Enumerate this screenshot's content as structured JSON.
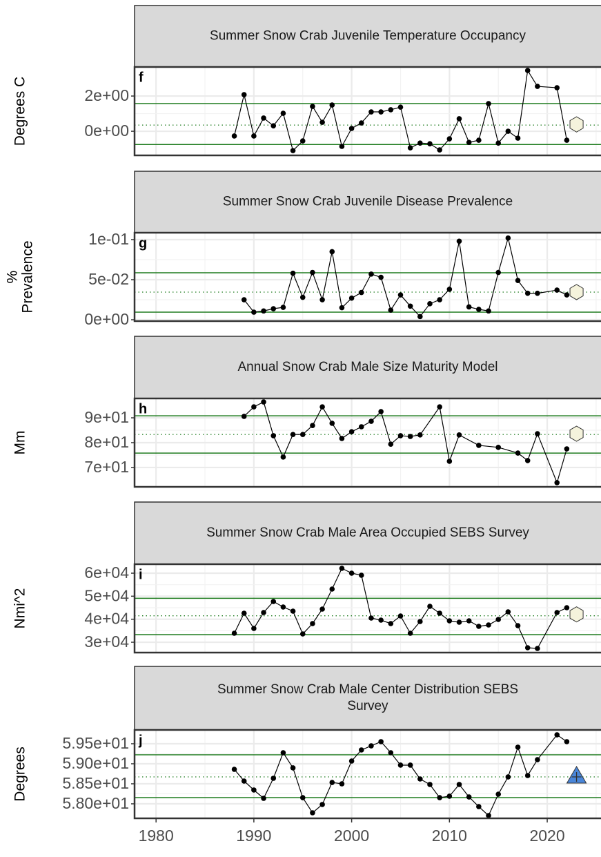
{
  "chart_data": [
    {
      "type": "line",
      "title": "Summer Snow Crab Juvenile Temperature Occupancy",
      "panel_label": "f",
      "ylabel": [
        "Degrees C"
      ],
      "x": [
        1988,
        1989,
        1990,
        1991,
        1992,
        1993,
        1994,
        1995,
        1996,
        1997,
        1998,
        1999,
        2000,
        2001,
        2002,
        2003,
        2004,
        2005,
        2006,
        2007,
        2008,
        2009,
        2010,
        2011,
        2012,
        2013,
        2014,
        2015,
        2016,
        2017,
        2018,
        2019,
        2021,
        2022
      ],
      "values": [
        -0.27,
        2.08,
        -0.27,
        0.75,
        0.31,
        1.02,
        -1.1,
        -0.55,
        1.41,
        0.51,
        1.49,
        -0.86,
        0.16,
        0.47,
        1.1,
        1.1,
        1.22,
        1.37,
        -0.94,
        -0.67,
        -0.71,
        -1.06,
        -0.43,
        0.71,
        -0.63,
        -0.51,
        1.57,
        -0.67,
        0,
        -0.39,
        3.45,
        2.55,
        2.47,
        -0.51
      ],
      "color": "#000000",
      "xlim": [
        1977.8,
        2025.5
      ],
      "ylim": [
        -1.37,
        3.65
      ],
      "yticks": [
        {
          "value": 0,
          "label": "0e+00"
        },
        {
          "value": 2,
          "label": "2e+00"
        }
      ],
      "ref_lines": [
        {
          "value": 1.57,
          "style": "solid"
        },
        {
          "value": -0.75,
          "style": "solid"
        },
        {
          "value": 0.35,
          "style": "dotted"
        }
      ],
      "ref_color": "#1e7b1e",
      "current": {
        "x": 2023,
        "value": 0.39,
        "shape": "hexagon",
        "color": "#f5f3dc"
      },
      "grid": true
    },
    {
      "type": "line",
      "title": "Summer Snow Crab Juvenile Disease Prevalence",
      "panel_label": "g",
      "ylabel": [
        "%",
        "Prevalence"
      ],
      "x": [
        1989,
        1990,
        1991,
        1992,
        1993,
        1994,
        1995,
        1996,
        1997,
        1998,
        1999,
        2000,
        2001,
        2002,
        2003,
        2004,
        2005,
        2006,
        2007,
        2008,
        2009,
        2010,
        2011,
        2012,
        2013,
        2014,
        2015,
        2016,
        2017,
        2018,
        2019,
        2021,
        2022
      ],
      "values": [
        0.025,
        0.0095,
        0.011,
        0.0138,
        0.0155,
        0.058,
        0.028,
        0.059,
        0.025,
        0.085,
        0.015,
        0.027,
        0.034,
        0.057,
        0.053,
        0.012,
        0.031,
        0.017,
        0.004,
        0.02,
        0.025,
        0.038,
        0.098,
        0.016,
        0.013,
        0.011,
        0.059,
        0.102,
        0.049,
        0.033,
        0.033,
        0.037,
        0.031
      ],
      "color": "#000000",
      "xlim": [
        1977.8,
        2025.5
      ],
      "ylim": [
        -0.0017,
        0.1086
      ],
      "yticks": [
        {
          "value": 0,
          "label": "0e+00"
        },
        {
          "value": 0.05,
          "label": "5e-02"
        },
        {
          "value": 0.1,
          "label": "1e-01"
        }
      ],
      "ref_lines": [
        {
          "value": 0.0586,
          "style": "solid"
        },
        {
          "value": 0.0095,
          "style": "solid"
        },
        {
          "value": 0.0345,
          "style": "dotted"
        }
      ],
      "ref_color": "#1e7b1e",
      "current": {
        "x": 2023,
        "value": 0.0345,
        "shape": "hexagon",
        "color": "#f5f3dc"
      },
      "grid": true
    },
    {
      "type": "line",
      "title": "Annual Snow Crab Male Size Maturity Model",
      "panel_label": "h",
      "ylabel": [
        "Mm"
      ],
      "x": [
        1989,
        1990,
        1991,
        1992,
        1993,
        1994,
        1995,
        1996,
        1997,
        1998,
        1999,
        2000,
        2001,
        2002,
        2003,
        2004,
        2005,
        2006,
        2007,
        2009,
        2010,
        2011,
        2013,
        2015,
        2017,
        2018,
        2019,
        2021,
        2022
      ],
      "values": [
        90.6,
        94.4,
        96.4,
        82.8,
        74.2,
        83.3,
        83.3,
        86.9,
        94.4,
        87.8,
        81.7,
        84.4,
        86.4,
        88.6,
        92.5,
        79.4,
        82.8,
        82.5,
        83.1,
        94.4,
        72.5,
        83.1,
        78.9,
        78.1,
        75.8,
        72.8,
        83.6,
        63.9,
        77.5
      ],
      "color": "#000000",
      "xlim": [
        1977.8,
        2025.5
      ],
      "ylim": [
        62.2,
        97.8
      ],
      "yticks": [
        {
          "value": 70,
          "label": "7e+01"
        },
        {
          "value": 80,
          "label": "8e+01"
        },
        {
          "value": 90,
          "label": "9e+01"
        }
      ],
      "ref_lines": [
        {
          "value": 90.8,
          "style": "solid"
        },
        {
          "value": 75.8,
          "style": "solid"
        },
        {
          "value": 83.3,
          "style": "dotted"
        }
      ],
      "ref_color": "#1e7b1e",
      "current": {
        "x": 2023,
        "value": 83.6,
        "shape": "hexagon",
        "color": "#f5f3dc"
      },
      "grid": true
    },
    {
      "type": "line",
      "title": "Summer Snow Crab Male Area Occupied SEBS Survey",
      "panel_label": "i",
      "ylabel": [
        "Nmi^2"
      ],
      "x": [
        1988,
        1989,
        1990,
        1991,
        1992,
        1993,
        1994,
        1995,
        1996,
        1997,
        1998,
        1999,
        2000,
        2001,
        2002,
        2003,
        2004,
        2005,
        2006,
        2007,
        2008,
        2009,
        2010,
        2011,
        2012,
        2013,
        2014,
        2015,
        2016,
        2017,
        2018,
        2019,
        2021,
        2022
      ],
      "values": [
        33900,
        42600,
        36000,
        42900,
        47700,
        45300,
        43500,
        33600,
        38100,
        44400,
        53100,
        62100,
        60000,
        59100,
        40500,
        39600,
        38100,
        41400,
        33900,
        39000,
        45600,
        42600,
        39300,
        38700,
        39300,
        36900,
        37500,
        39900,
        43200,
        37200,
        27600,
        27300,
        42900,
        45000
      ],
      "color": "#000000",
      "xlim": [
        1977.8,
        2025.5
      ],
      "ylim": [
        25500,
        63900
      ],
      "yticks": [
        {
          "value": 30000,
          "label": "3e+04"
        },
        {
          "value": 40000,
          "label": "4e+04"
        },
        {
          "value": 50000,
          "label": "5e+04"
        },
        {
          "value": 60000,
          "label": "6e+04"
        }
      ],
      "ref_lines": [
        {
          "value": 49100,
          "style": "solid"
        },
        {
          "value": 33300,
          "style": "solid"
        },
        {
          "value": 41500,
          "style": "dotted"
        }
      ],
      "ref_color": "#1e7b1e",
      "current": {
        "x": 2023,
        "value": 42100,
        "shape": "hexagon",
        "color": "#f5f3dc"
      },
      "grid": true
    },
    {
      "type": "line",
      "title": [
        "Summer Snow Crab Male Center Distribution SEBS",
        "Survey"
      ],
      "panel_label": "j",
      "ylabel": [
        "Degrees"
      ],
      "x": [
        1988,
        1989,
        1990,
        1991,
        1992,
        1993,
        1994,
        1995,
        1996,
        1997,
        1998,
        1999,
        2000,
        2001,
        2002,
        2003,
        2004,
        2005,
        2006,
        2007,
        2008,
        2009,
        2010,
        2011,
        2012,
        2013,
        2014,
        2015,
        2016,
        2017,
        2018,
        2019,
        2021,
        2022
      ],
      "values": [
        58.862,
        58.569,
        58.345,
        58.138,
        58.638,
        59.276,
        58.897,
        58.155,
        57.776,
        57.983,
        58.534,
        58.5,
        59.069,
        59.345,
        59.448,
        59.552,
        59.276,
        58.966,
        58.966,
        58.621,
        58.483,
        58.155,
        58.19,
        58.483,
        58.172,
        57.931,
        57.707,
        58.241,
        58.672,
        59.414,
        58.707,
        59.103,
        59.724,
        59.552
      ],
      "color": "#000000",
      "xlim": [
        1977.8,
        2025.5
      ],
      "ylim": [
        57.638,
        59.845
      ],
      "yticks": [
        {
          "value": 58.0,
          "label": "5.80e+01"
        },
        {
          "value": 58.5,
          "label": "5.85e+01"
        },
        {
          "value": 59.0,
          "label": "5.90e+01"
        },
        {
          "value": 59.5,
          "label": "5.95e+01"
        }
      ],
      "xticks": [
        1980,
        1990,
        2000,
        2010,
        2020
      ],
      "ref_lines": [
        {
          "value": 59.224,
          "style": "solid"
        },
        {
          "value": 58.155,
          "style": "solid"
        },
        {
          "value": 58.672,
          "style": "dotted"
        }
      ],
      "ref_color": "#1e7b1e",
      "current": {
        "x": 2023,
        "value": 58.69,
        "shape": "triangle",
        "color": "#4a86d9"
      },
      "grid": true
    }
  ]
}
